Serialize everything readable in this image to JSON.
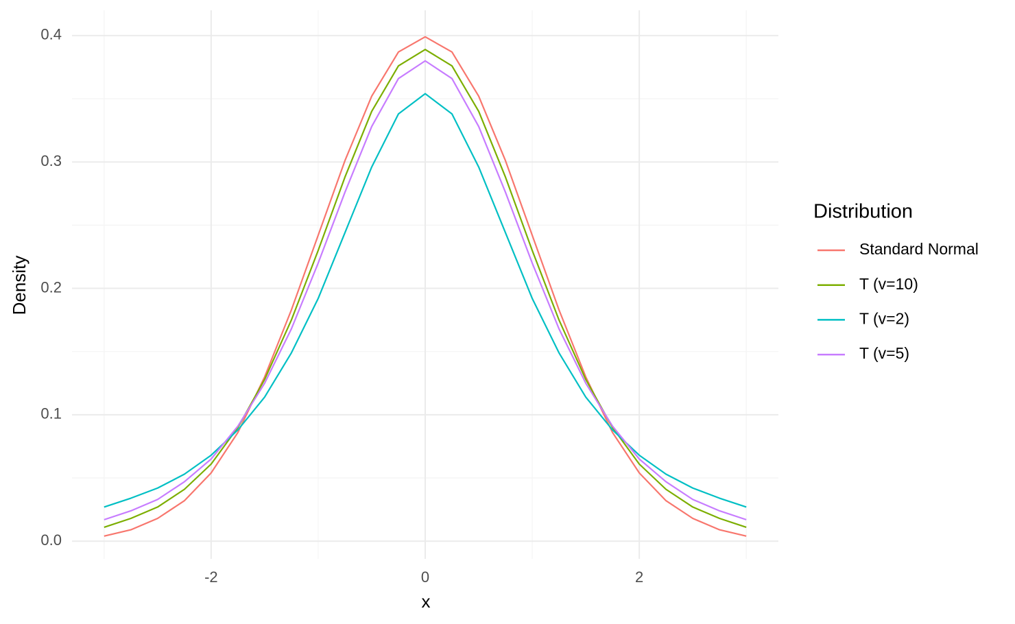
{
  "chart_data": {
    "type": "line",
    "x_label": "x",
    "y_label": "Density",
    "legend_title": "Distribution",
    "x": [
      -3,
      -2.75,
      -2.5,
      -2.25,
      -2,
      -1.75,
      -1.5,
      -1.25,
      -1,
      -0.75,
      -0.5,
      -0.25,
      0,
      0.25,
      0.5,
      0.75,
      1,
      1.25,
      1.5,
      1.75,
      2,
      2.25,
      2.5,
      2.75,
      3
    ],
    "series": [
      {
        "name": "Standard Normal",
        "color": "#F8766D",
        "values": [
          0.004,
          0.009,
          0.018,
          0.032,
          0.054,
          0.086,
          0.13,
          0.183,
          0.242,
          0.301,
          0.352,
          0.387,
          0.399,
          0.387,
          0.352,
          0.301,
          0.242,
          0.183,
          0.13,
          0.086,
          0.054,
          0.032,
          0.018,
          0.009,
          0.004
        ]
      },
      {
        "name": "T (v=10)",
        "color": "#7CAE00",
        "values": [
          0.011,
          0.018,
          0.027,
          0.041,
          0.061,
          0.09,
          0.128,
          0.175,
          0.23,
          0.288,
          0.34,
          0.376,
          0.389,
          0.376,
          0.34,
          0.288,
          0.23,
          0.175,
          0.128,
          0.09,
          0.061,
          0.041,
          0.027,
          0.018,
          0.011
        ]
      },
      {
        "name": "T (v=2)",
        "color": "#00BFC4",
        "values": [
          0.027,
          0.034,
          0.042,
          0.053,
          0.068,
          0.088,
          0.114,
          0.149,
          0.192,
          0.244,
          0.296,
          0.338,
          0.354,
          0.338,
          0.296,
          0.244,
          0.192,
          0.149,
          0.114,
          0.088,
          0.068,
          0.053,
          0.042,
          0.034,
          0.027
        ]
      },
      {
        "name": "T (v=5)",
        "color": "#C77CFF",
        "values": [
          0.017,
          0.024,
          0.033,
          0.047,
          0.065,
          0.091,
          0.125,
          0.168,
          0.22,
          0.276,
          0.328,
          0.366,
          0.38,
          0.366,
          0.328,
          0.276,
          0.22,
          0.168,
          0.125,
          0.091,
          0.065,
          0.047,
          0.033,
          0.024,
          0.017
        ]
      }
    ],
    "xlim": [
      -3.3,
      3.3
    ],
    "ylim": [
      -0.014,
      0.42
    ],
    "xticks": [
      -2,
      0,
      2
    ],
    "yticks": [
      {
        "value": 0,
        "label": "0.0"
      },
      0.1,
      0.2,
      0.3,
      0.4
    ],
    "grid": true
  }
}
